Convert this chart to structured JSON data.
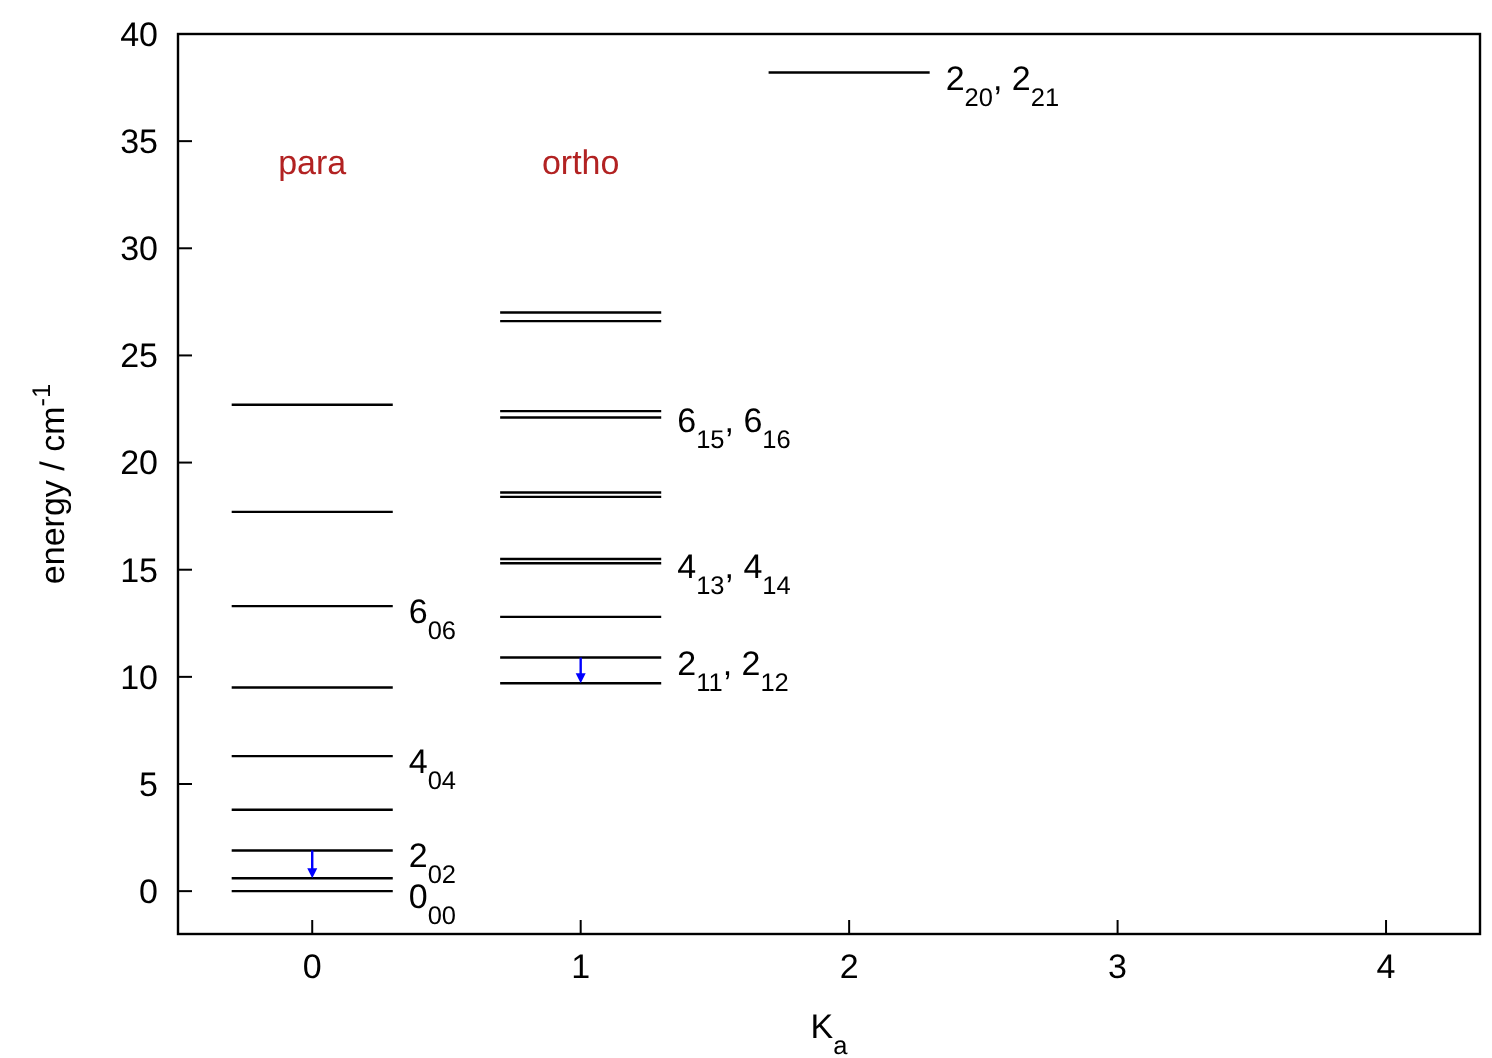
{
  "chart_data": {
    "type": "line",
    "xlabel": "K$_{a}$",
    "ylabel": "energy / cm$^{-1}$",
    "xlim": [
      -0.5,
      4.35
    ],
    "ylim": [
      -2,
      40
    ],
    "xticks": [
      0,
      1,
      2,
      3,
      4
    ],
    "yticks": [
      0,
      5,
      10,
      15,
      20,
      25,
      30,
      35,
      40
    ],
    "grid": false,
    "marker": "none",
    "line_style": "solid",
    "series": [
      {
        "color": "#000000",
        "x": [
          -0.3,
          0.3
        ],
        "values": [
          0,
          0
        ]
      },
      {
        "color": "#000000",
        "x": [
          -0.3,
          0.3
        ],
        "values": [
          0.6,
          0.6
        ]
      },
      {
        "color": "#000000",
        "x": [
          -0.3,
          0.3
        ],
        "values": [
          1.9,
          1.9
        ]
      },
      {
        "color": "#000000",
        "x": [
          -0.3,
          0.3
        ],
        "values": [
          3.8,
          3.8
        ]
      },
      {
        "color": "#000000",
        "x": [
          -0.3,
          0.3
        ],
        "values": [
          6.3,
          6.3
        ]
      },
      {
        "color": "#000000",
        "x": [
          -0.3,
          0.3
        ],
        "values": [
          9.5,
          9.5
        ]
      },
      {
        "color": "#000000",
        "x": [
          -0.3,
          0.3
        ],
        "values": [
          13.3,
          13.3
        ]
      },
      {
        "color": "#000000",
        "x": [
          -0.3,
          0.3
        ],
        "values": [
          17.7,
          17.7
        ]
      },
      {
        "color": "#000000",
        "x": [
          -0.3,
          0.3
        ],
        "values": [
          22.7,
          22.7
        ]
      },
      {
        "color": "#000000",
        "x": [
          0.7,
          1.3
        ],
        "values": [
          9.7,
          9.7
        ]
      },
      {
        "color": "#000000",
        "x": [
          0.7,
          1.3
        ],
        "values": [
          10.9,
          10.9
        ]
      },
      {
        "color": "#000000",
        "x": [
          0.7,
          1.3
        ],
        "values": [
          12.8,
          12.8
        ]
      },
      {
        "color": "#000000",
        "x": [
          0.7,
          1.3
        ],
        "values": [
          15.3,
          15.3
        ]
      },
      {
        "color": "#000000",
        "x": [
          0.7,
          1.3
        ],
        "values": [
          15.5,
          15.5
        ]
      },
      {
        "color": "#000000",
        "x": [
          0.7,
          1.3
        ],
        "values": [
          18.4,
          18.4
        ]
      },
      {
        "color": "#000000",
        "x": [
          0.7,
          1.3
        ],
        "values": [
          18.6,
          18.6
        ]
      },
      {
        "color": "#000000",
        "x": [
          0.7,
          1.3
        ],
        "values": [
          22.1,
          22.1
        ]
      },
      {
        "color": "#000000",
        "x": [
          0.7,
          1.3
        ],
        "values": [
          22.4,
          22.4
        ]
      },
      {
        "color": "#000000",
        "x": [
          0.7,
          1.3
        ],
        "values": [
          26.6,
          26.6
        ]
      },
      {
        "color": "#000000",
        "x": [
          0.7,
          1.3
        ],
        "values": [
          27.0,
          27.0
        ]
      },
      {
        "color": "#000000",
        "x": [
          1.7,
          2.3
        ],
        "values": [
          38.2,
          38.2
        ]
      }
    ],
    "annotations": [
      "para",
      "ortho",
      {
        "text": "0$_{00}$",
        "x": 0.3,
        "y": 0
      },
      {
        "text": "2$_{02}$",
        "x": 0.3,
        "y": 1.9
      },
      {
        "text": "4$_{04}$",
        "x": 0.3,
        "y": 6.3
      },
      {
        "text": "6$_{06}$",
        "x": 0.3,
        "y": 13.3
      },
      {
        "text": "2$_{11}$, 2$_{12}$",
        "x": 1.3,
        "y": 10.9
      },
      {
        "text": "4$_{13}$, 4$_{14}$",
        "x": 1.3,
        "y": 15.4
      },
      {
        "text": "6$_{15}$, 6$_{16}$",
        "x": 1.3,
        "y": 22.2
      },
      {
        "text": "2$_{20}$, 2$_{21}$",
        "x": 2.3,
        "y": 38.2
      }
    ]
  }
}
